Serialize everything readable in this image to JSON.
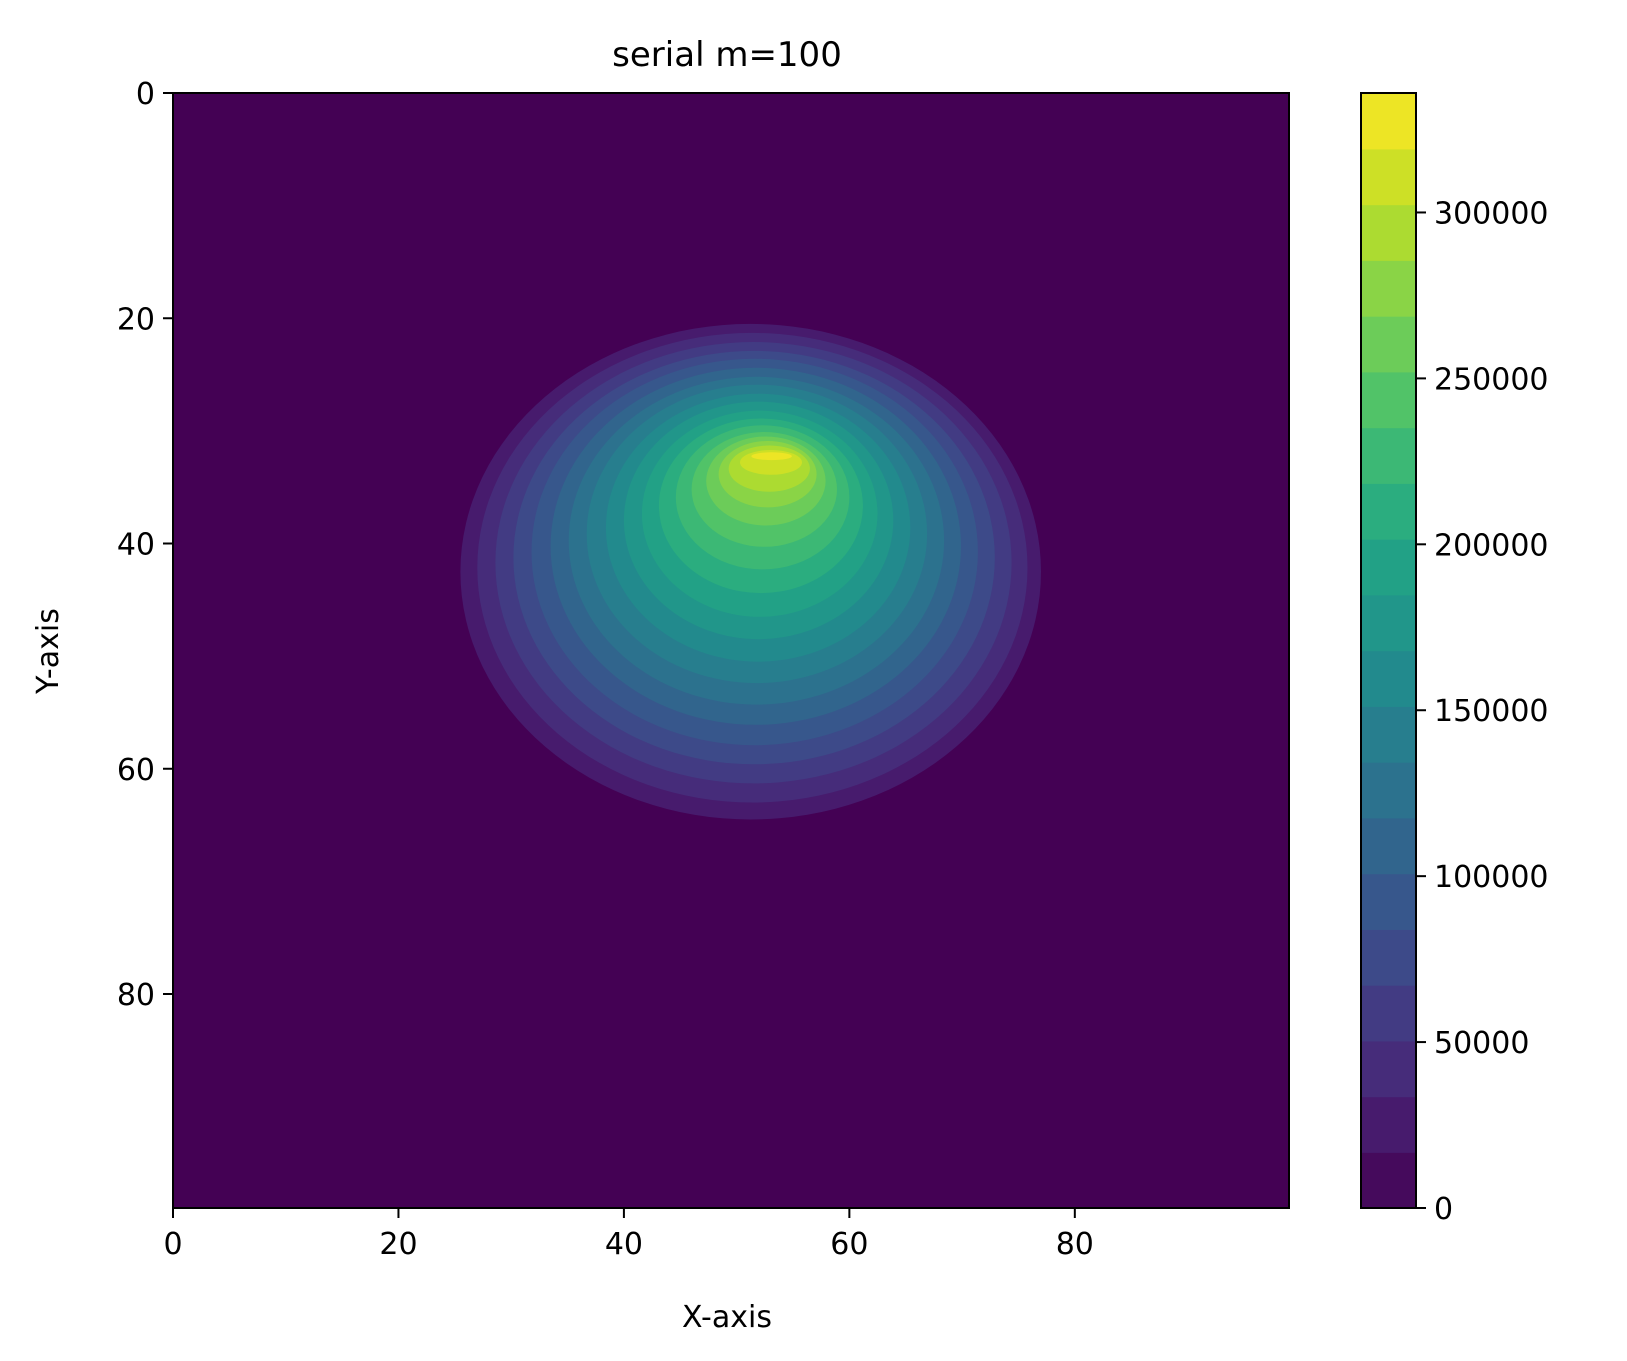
{
  "chart_data": {
    "type": "heatmap",
    "style": "filled-contour",
    "colormap": "viridis",
    "title": "serial m=100",
    "xlabel": "X-axis",
    "ylabel": "Y-axis",
    "xlim": [
      0,
      99
    ],
    "ylim": [
      99,
      0
    ],
    "y_axis_inverted": true,
    "x_ticks": [
      0,
      20,
      40,
      60,
      80
    ],
    "x_tick_labels": [
      "0",
      "20",
      "40",
      "60",
      "80"
    ],
    "y_ticks": [
      0,
      20,
      40,
      60,
      80
    ],
    "y_tick_labels": [
      "0",
      "20",
      "40",
      "60",
      "80"
    ],
    "colorbar": {
      "vmin": 0,
      "vmax": 336000,
      "ticks": [
        0,
        50000,
        100000,
        150000,
        200000,
        250000,
        300000
      ],
      "tick_labels": [
        "0",
        "50000",
        "100000",
        "150000",
        "200000",
        "250000",
        "300000"
      ]
    },
    "background_value": 0,
    "peak": {
      "x": 54,
      "y": 32,
      "value": 336000
    },
    "contour_levels": [
      {
        "value": 16800,
        "x_range": [
          25.5,
          77.0
        ],
        "y_range": [
          20.5,
          64.5
        ]
      },
      {
        "value": 33600,
        "x_range": [
          27.0,
          75.8
        ],
        "y_range": [
          21.3,
          63.0
        ]
      },
      {
        "value": 50400,
        "x_range": [
          28.6,
          74.4
        ],
        "y_range": [
          22.1,
          61.3
        ]
      },
      {
        "value": 67200,
        "x_range": [
          30.2,
          72.9
        ],
        "y_range": [
          22.9,
          59.6
        ]
      },
      {
        "value": 84000,
        "x_range": [
          31.8,
          71.4
        ],
        "y_range": [
          23.6,
          57.9
        ]
      },
      {
        "value": 100800,
        "x_range": [
          33.5,
          69.9
        ],
        "y_range": [
          24.4,
          56.1
        ]
      },
      {
        "value": 117600,
        "x_range": [
          35.1,
          68.4
        ],
        "y_range": [
          25.2,
          54.3
        ]
      },
      {
        "value": 134400,
        "x_range": [
          36.7,
          66.9
        ],
        "y_range": [
          25.9,
          52.4
        ]
      },
      {
        "value": 151200,
        "x_range": [
          38.4,
          65.4
        ],
        "y_range": [
          26.7,
          50.5
        ]
      },
      {
        "value": 168000,
        "x_range": [
          40.0,
          63.9
        ],
        "y_range": [
          27.4,
          48.5
        ]
      },
      {
        "value": 184800,
        "x_range": [
          41.6,
          62.5
        ],
        "y_range": [
          28.2,
          46.5
        ]
      },
      {
        "value": 201600,
        "x_range": [
          43.1,
          61.2
        ],
        "y_range": [
          28.9,
          44.4
        ]
      },
      {
        "value": 218400,
        "x_range": [
          44.6,
          60.0
        ],
        "y_range": [
          29.5,
          42.3
        ]
      },
      {
        "value": 235200,
        "x_range": [
          46.0,
          58.9
        ],
        "y_range": [
          30.1,
          40.3
        ]
      },
      {
        "value": 252000,
        "x_range": [
          47.3,
          57.9
        ],
        "y_range": [
          30.5,
          38.4
        ]
      },
      {
        "value": 268800,
        "x_range": [
          48.4,
          57.1
        ],
        "y_range": [
          30.9,
          36.8
        ]
      },
      {
        "value": 285600,
        "x_range": [
          49.3,
          56.5
        ],
        "y_range": [
          31.3,
          35.4
        ]
      },
      {
        "value": 302400,
        "x_range": [
          50.3,
          55.8
        ],
        "y_range": [
          31.7,
          33.9
        ]
      },
      {
        "value": 319200,
        "x_range": [
          51.3,
          54.9
        ],
        "y_range": [
          31.9,
          32.6
        ]
      }
    ]
  }
}
